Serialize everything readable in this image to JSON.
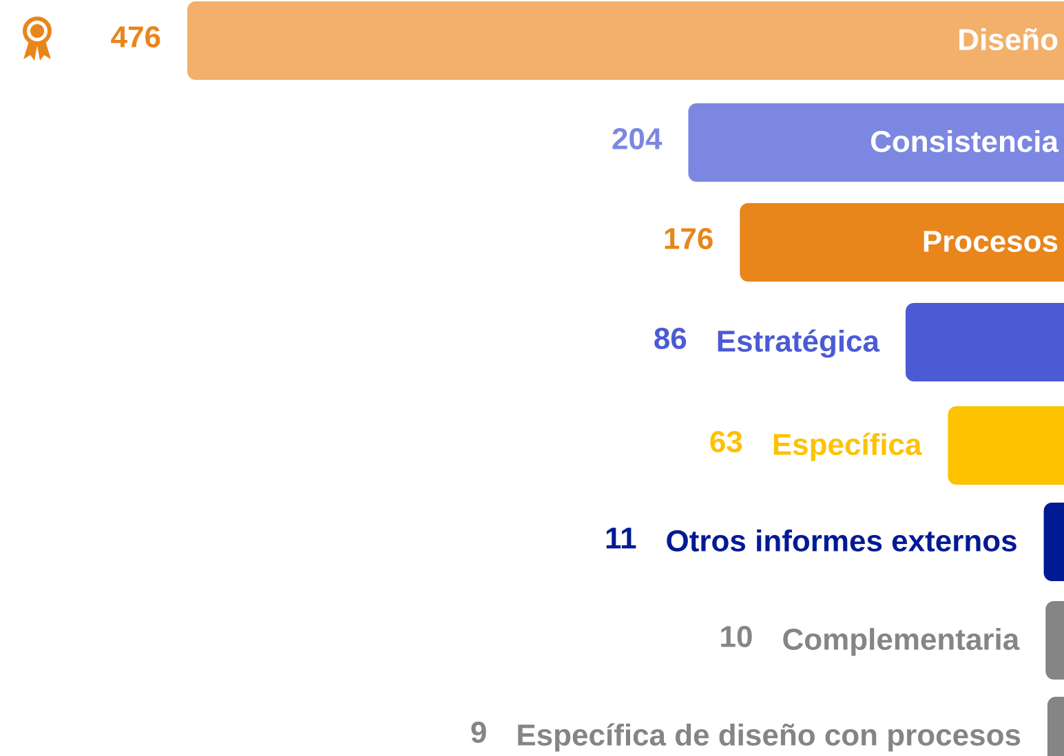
{
  "chart_data": {
    "type": "bar",
    "orientation": "horizontal",
    "categories": [
      "Diseño",
      "Consistencia",
      "Procesos",
      "Estratégica",
      "Específica",
      "Otros informes externos",
      "Complementaria",
      "Específica de diseño con procesos"
    ],
    "values": [
      476,
      204,
      176,
      86,
      63,
      11,
      10,
      9
    ],
    "colors": [
      "#f2b06b",
      "#7b87e0",
      "#e8851b",
      "#4a5bd4",
      "#fdc200",
      "#001a94",
      "#858585",
      "#858585"
    ],
    "label_colors": [
      "#e8851b",
      "#7b87e0",
      "#e8851b",
      "#4a5bd4",
      "#fdc200",
      "#001a94",
      "#858585",
      "#858585"
    ],
    "xlim": [
      0,
      476
    ]
  }
}
